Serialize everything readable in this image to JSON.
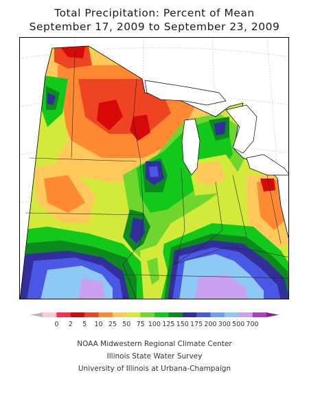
{
  "title": {
    "line1": "Total Precipitation: Percent of Mean",
    "line2": "September 17, 2009 to September 23, 2009"
  },
  "legend": {
    "labels": [
      "0",
      "2",
      "5",
      "10",
      "25",
      "50",
      "75",
      "100",
      "125",
      "150",
      "175",
      "200",
      "300",
      "500",
      "700"
    ],
    "colors": [
      "#ffc8d8",
      "#ff2c4c",
      "#d70808",
      "#ee4422",
      "#ff8a33",
      "#ffc85a",
      "#d4ea3a",
      "#6ed62c",
      "#12c81a",
      "#0b8a1e",
      "#322f9a",
      "#4a58e6",
      "#6aa0f2",
      "#8ec8f5",
      "#c8a2f0",
      "#b040c0"
    ],
    "left_arrow_color": "#b8b8b8",
    "right_arrow_color": "#8a1e9a"
  },
  "credits": {
    "line1": "NOAA Midwestern Regional Climate Center",
    "line2": "Illinois State Water Survey",
    "line3": "University of Illinois at Urbana-Champaign"
  }
}
